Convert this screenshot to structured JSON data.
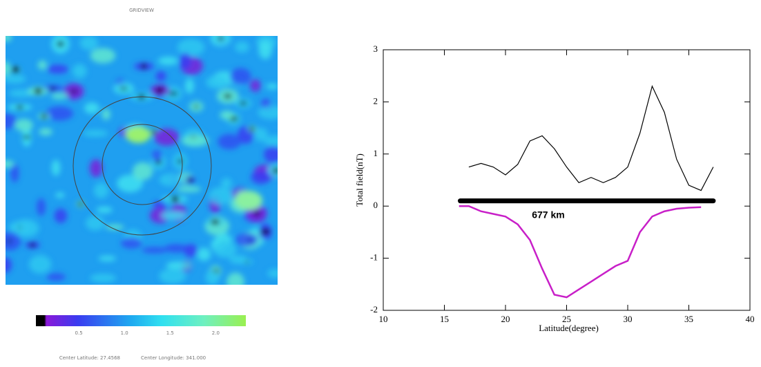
{
  "gridview": {
    "title": "GRIDVIEW",
    "colorbar": {
      "lim": [
        0.03,
        2.33
      ],
      "ticks": [
        {
          "value": 0.5,
          "label": "0.5"
        },
        {
          "value": 1.0,
          "label": "1.0"
        },
        {
          "value": 1.5,
          "label": "1.5"
        },
        {
          "value": 2.0,
          "label": "2.0"
        }
      ]
    },
    "footer": [
      "Center Latitude: 27.4568",
      "Center Longitude: 341.000"
    ]
  },
  "chart_data": {
    "type": "line",
    "xlabel": "Latitude(degree)",
    "ylabel": "Total field(nT)",
    "xlim": [
      10,
      40
    ],
    "xticks": [
      10,
      15,
      20,
      25,
      30,
      35,
      40
    ],
    "ylim": [
      -2,
      3
    ],
    "yticks": [
      -2,
      -1,
      0,
      1,
      2,
      3
    ],
    "series": [
      {
        "color": "#000000",
        "x": [
          17,
          18,
          19,
          20,
          21,
          22,
          23,
          24,
          25,
          26,
          27,
          28,
          29,
          30,
          31,
          32,
          33,
          34,
          35,
          36,
          37
        ],
        "values": [
          0.75,
          0.82,
          0.75,
          0.6,
          0.8,
          1.25,
          1.35,
          1.1,
          0.75,
          0.45,
          0.55,
          0.45,
          0.55,
          0.75,
          1.4,
          2.3,
          1.8,
          0.9,
          0.4,
          0.3,
          0.75
        ]
      },
      {
        "color": "#c81fc8",
        "x": [
          16.2,
          17,
          18,
          19,
          20,
          21,
          22,
          23,
          24,
          25,
          26,
          27,
          28,
          29,
          30,
          31,
          32,
          33,
          34,
          35,
          36
        ],
        "values": [
          0,
          0,
          -0.1,
          -0.15,
          -0.2,
          -0.35,
          -0.65,
          -1.2,
          -1.7,
          -1.75,
          -1.6,
          -1.45,
          -1.3,
          -1.15,
          -1.05,
          -0.5,
          -0.2,
          -0.1,
          -0.05,
          -0.03,
          -0.02
        ]
      }
    ],
    "scale_bar": {
      "x": [
        16.3,
        37
      ],
      "y": 0.1,
      "label": "677 km",
      "label_x": 23.5,
      "label_y": -0.18
    }
  }
}
